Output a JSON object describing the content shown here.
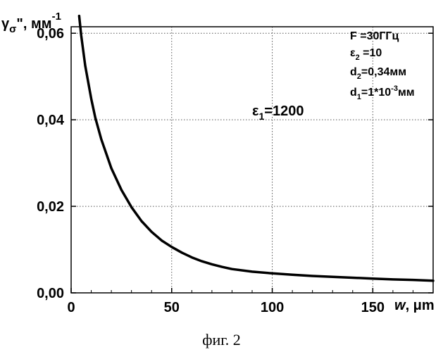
{
  "chart_data": {
    "type": "line",
    "ylabel": {
      "base": "γ",
      "sub": "σ",
      "after": "\", мм",
      "sup": "-1"
    },
    "xlabel": {
      "italic": "w",
      "after": ", μm"
    },
    "xlim": [
      0,
      180
    ],
    "ylim": [
      0,
      0.0615
    ],
    "xticks": [
      0,
      50,
      100,
      150
    ],
    "xtick_labels": [
      "0",
      "50",
      "100",
      "150"
    ],
    "yticks": [
      0,
      0.02,
      0.04,
      0.06
    ],
    "ytick_labels": [
      "0,00",
      "0,02",
      "0,04",
      "0,06"
    ],
    "grid": true,
    "series": [
      {
        "x": [
          4,
          5,
          7,
          10,
          12,
          15,
          20,
          25,
          30,
          35,
          40,
          45,
          50,
          55,
          60,
          65,
          70,
          75,
          80,
          90,
          100,
          110,
          120,
          130,
          140,
          150,
          160,
          170,
          180
        ],
        "y": [
          0.064,
          0.0595,
          0.0525,
          0.0448,
          0.0405,
          0.0355,
          0.0288,
          0.0238,
          0.0198,
          0.0166,
          0.0141,
          0.0121,
          0.0106,
          0.0093,
          0.0082,
          0.0073,
          0.0066,
          0.006,
          0.0055,
          0.0049,
          0.0045,
          0.0042,
          0.0039,
          0.0037,
          0.0035,
          0.0033,
          0.0031,
          0.003,
          0.0028
        ]
      }
    ],
    "annotations": {
      "eps1": {
        "base": "ε",
        "sub": "1",
        "after": "=1200"
      },
      "params": [
        {
          "base": "F =30ГГц",
          "sub": "",
          "after": "",
          "sup": "",
          "tail": ""
        },
        {
          "base": "ε",
          "sub": "2",
          "after": " =10",
          "sup": "",
          "tail": ""
        },
        {
          "base": "d",
          "sub": "2",
          "after": "=0,34мм",
          "sup": "",
          "tail": ""
        },
        {
          "base": "d",
          "sub": "1",
          "after": "=1*10",
          "sup": "-3",
          "tail": "мм"
        }
      ]
    }
  },
  "caption": "фиг. 2"
}
